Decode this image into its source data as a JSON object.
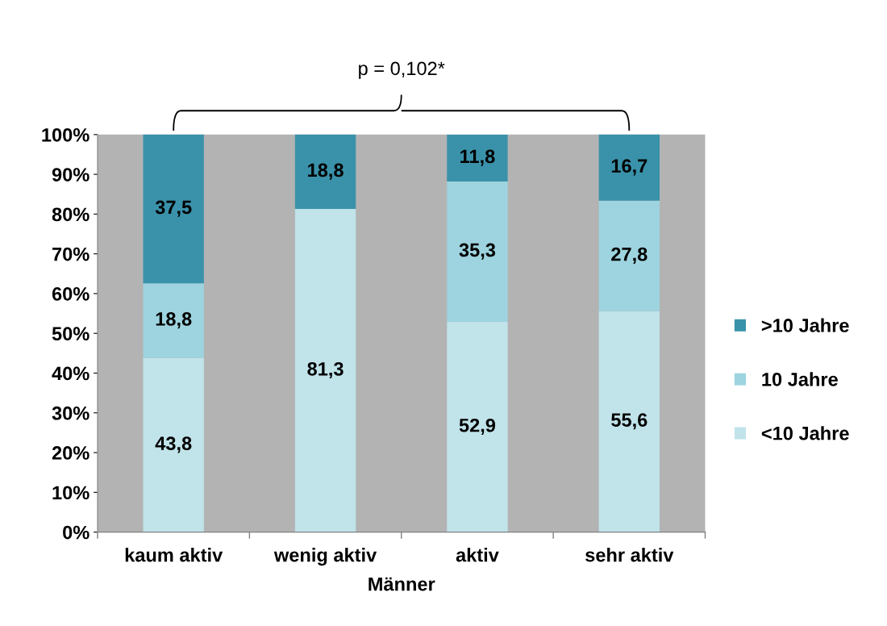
{
  "chart_data": {
    "type": "bar",
    "stacked": true,
    "xlabel": "Männer",
    "categories": [
      "kaum aktiv",
      "wenig aktiv",
      "aktiv",
      "sehr aktiv"
    ],
    "series": [
      {
        "name": "<10 Jahre",
        "color": "#c1e3ea",
        "values": [
          43.8,
          81.3,
          52.9,
          55.6
        ],
        "value_labels": [
          "43,8",
          "81,3",
          "52,9",
          "55,6"
        ]
      },
      {
        "name": "10 Jahre",
        "color": "#9dd4df",
        "values": [
          18.8,
          0,
          35.3,
          27.8
        ],
        "value_labels": [
          "18,8",
          null,
          "35,3",
          "27,8"
        ]
      },
      {
        "name": ">10 Jahre",
        "color": "#3a92aa",
        "values": [
          37.5,
          18.8,
          11.8,
          16.7
        ],
        "value_labels": [
          "37,5",
          "18,8",
          "11,8",
          "16,7"
        ]
      }
    ],
    "ylim": [
      0,
      100
    ],
    "yticks": [
      {
        "value": 0,
        "label": "0%"
      },
      {
        "value": 10,
        "label": "10%"
      },
      {
        "value": 20,
        "label": "20%"
      },
      {
        "value": 30,
        "label": "30%"
      },
      {
        "value": 40,
        "label": "40%"
      },
      {
        "value": 50,
        "label": "50%"
      },
      {
        "value": 60,
        "label": "60%"
      },
      {
        "value": 70,
        "label": "70%"
      },
      {
        "value": 80,
        "label": "80%"
      },
      {
        "value": 90,
        "label": "90%"
      },
      {
        "value": 100,
        "label": "100%"
      }
    ],
    "annotations": [
      "p = 0,102*"
    ],
    "legend": "right",
    "grid": false
  }
}
